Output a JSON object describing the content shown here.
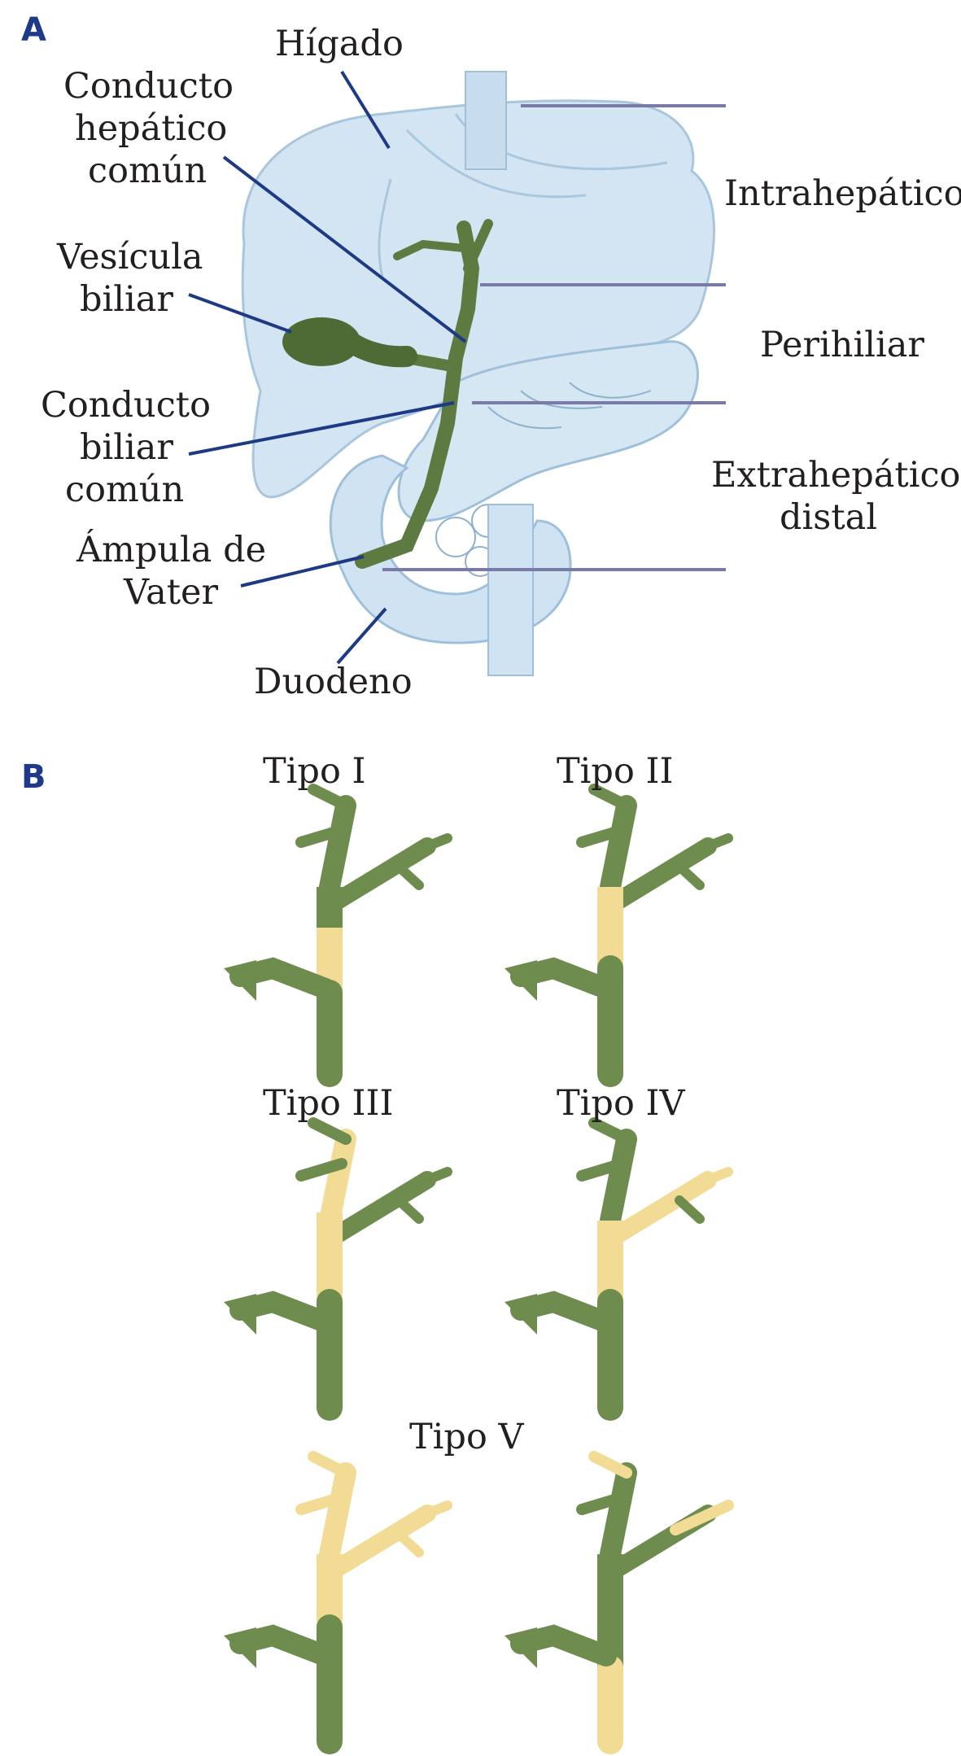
{
  "colors": {
    "accent_letter": "#1f3a8a",
    "leader_line": "#1d3a84",
    "organ_fill": "#cfe3f2",
    "organ_stroke": "#9fc0da",
    "duct_green": "#6f8c4f",
    "duct_green_dark": "#4f6b35",
    "tumor_yellow": "#f2dc95",
    "level_line": "#7a7aa6"
  },
  "panel_a": {
    "letter": "A",
    "labels": {
      "higado": "Hígado",
      "conducto_hepatico_1": "Conducto",
      "conducto_hepatico_2": "hepático",
      "conducto_hepatico_3": "común",
      "vesicula_1": "Vesícula",
      "vesicula_2": "biliar",
      "conducto_biliar_1": "Conducto",
      "conducto_biliar_2": "biliar",
      "conducto_biliar_3": "común",
      "ampula_1": "Ámpula de",
      "ampula_2": "Vater",
      "duodeno": "Duodeno"
    },
    "zones": {
      "intrahepatico": "Intrahepático",
      "perihiliar": "Perihiliar",
      "extrahepatico_1": "Extrahepático",
      "extrahepatico_2": "distal"
    }
  },
  "panel_b": {
    "letter": "B",
    "types": {
      "tipo_i": "Tipo I",
      "tipo_ii": "Tipo II",
      "tipo_iii": "Tipo III",
      "tipo_iv": "Tipo IV",
      "tipo_v": "Tipo V"
    }
  }
}
